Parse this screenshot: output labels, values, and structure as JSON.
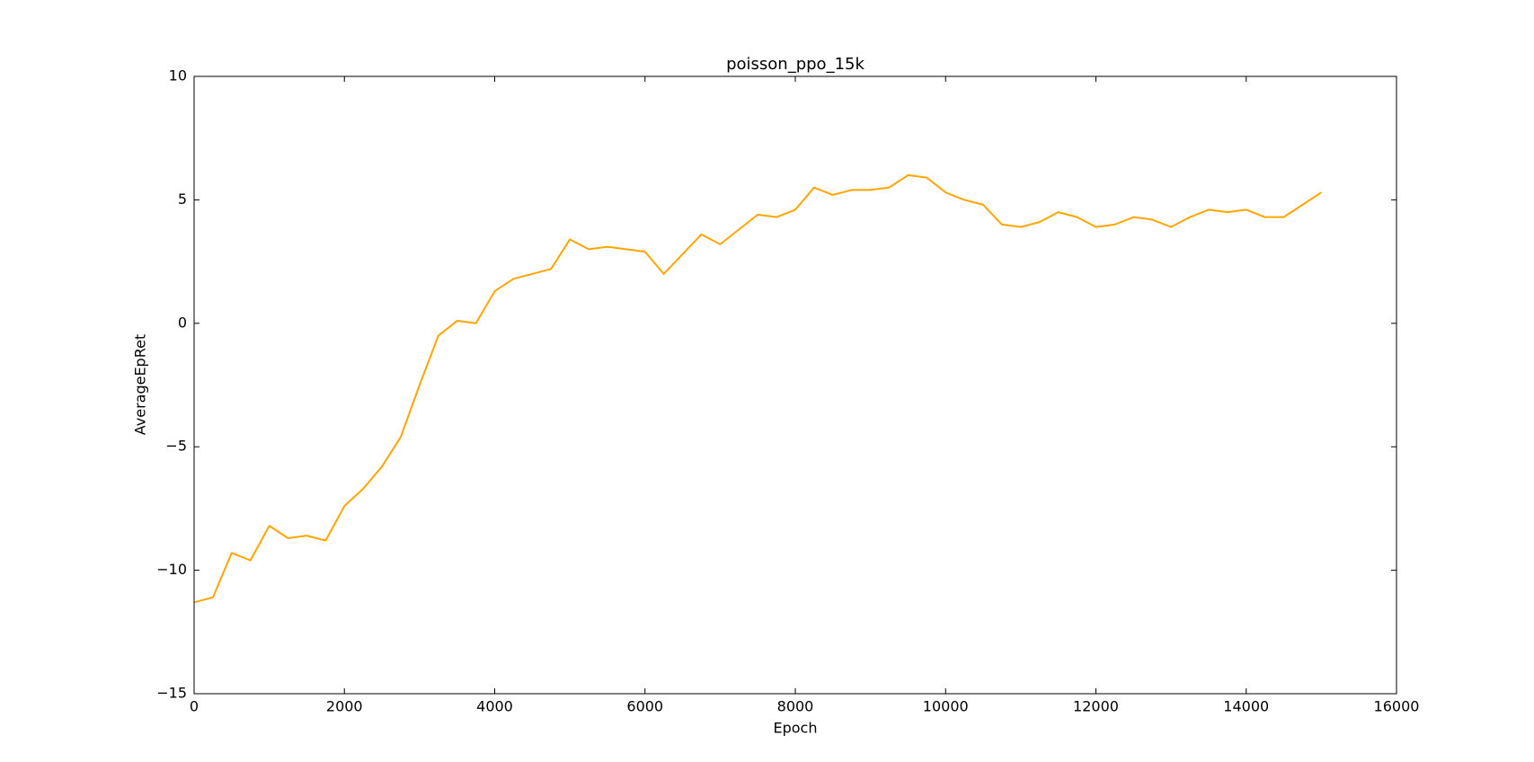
{
  "chart_data": {
    "type": "line",
    "title": "poisson_ppo_15k",
    "x_label": "Epoch",
    "y_label": "AverageEpRet",
    "x": [
      0,
      250,
      500,
      750,
      1000,
      1250,
      1500,
      1750,
      2000,
      2250,
      2500,
      2750,
      3000,
      3250,
      3500,
      3750,
      4000,
      4250,
      4500,
      4750,
      5000,
      5250,
      5500,
      5750,
      6000,
      6250,
      6500,
      6750,
      7000,
      7250,
      7500,
      7750,
      8000,
      8250,
      8500,
      8750,
      9000,
      9250,
      9500,
      9750,
      10000,
      10250,
      10500,
      10750,
      11000,
      11250,
      11500,
      11750,
      12000,
      12250,
      12500,
      12750,
      13000,
      13250,
      13500,
      13750,
      14000,
      14250,
      14500,
      14750,
      15000
    ],
    "series": [
      {
        "name": "AverageEpRet",
        "color": "#ffa500",
        "values": [
          -11.3,
          -11.1,
          -9.3,
          -9.6,
          -8.2,
          -8.7,
          -8.6,
          -8.8,
          -7.4,
          -6.7,
          -5.8,
          -4.6,
          -2.5,
          -0.5,
          0.1,
          0.0,
          1.3,
          1.8,
          2.0,
          2.2,
          3.4,
          3.0,
          3.1,
          3.0,
          2.9,
          2.0,
          2.8,
          3.6,
          3.2,
          3.8,
          4.4,
          4.3,
          4.6,
          5.5,
          5.2,
          5.4,
          5.4,
          5.5,
          6.0,
          5.9,
          5.3,
          5.0,
          4.8,
          4.0,
          3.9,
          4.1,
          4.5,
          4.3,
          3.9,
          4.0,
          4.3,
          4.2,
          3.9,
          4.3,
          4.6,
          4.5,
          4.6,
          4.3,
          4.3,
          4.8,
          5.3
        ]
      }
    ],
    "xlim": [
      0,
      16000
    ],
    "xticks": [
      0,
      2000,
      4000,
      6000,
      8000,
      10000,
      12000,
      14000,
      16000
    ],
    "ylim": [
      -15,
      10
    ],
    "yticks": [
      {
        "value": -15,
        "label": "−15"
      },
      {
        "value": -10,
        "label": "−10"
      },
      {
        "value": -5,
        "label": "−5"
      },
      0,
      5,
      10
    ],
    "grid": false
  }
}
